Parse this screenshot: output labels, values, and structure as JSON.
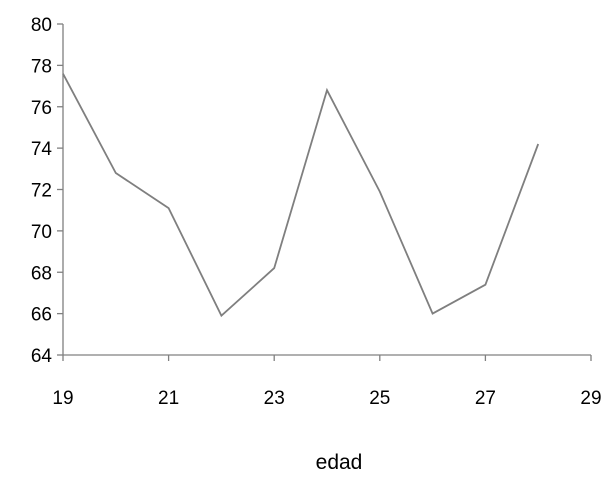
{
  "chart_data": {
    "type": "line",
    "title": "",
    "xlabel": "edad",
    "ylabel": "",
    "xlim": [
      19,
      29
    ],
    "ylim": [
      64,
      80
    ],
    "x_ticks": [
      "19",
      "21",
      "23",
      "25",
      "27",
      "29"
    ],
    "y_ticks": [
      "64",
      "66",
      "68",
      "70",
      "72",
      "74",
      "76",
      "78",
      "80"
    ],
    "grid": false,
    "legend": "none",
    "series": [
      {
        "color": "#7f7f7f",
        "x": [
          19,
          20,
          21,
          22,
          23,
          24,
          25,
          26,
          27,
          28
        ],
        "values": [
          77.6,
          72.8,
          71.1,
          65.9,
          68.2,
          76.8,
          71.9,
          66.0,
          67.4,
          74.2
        ]
      }
    ],
    "axis_color": "#808080"
  }
}
